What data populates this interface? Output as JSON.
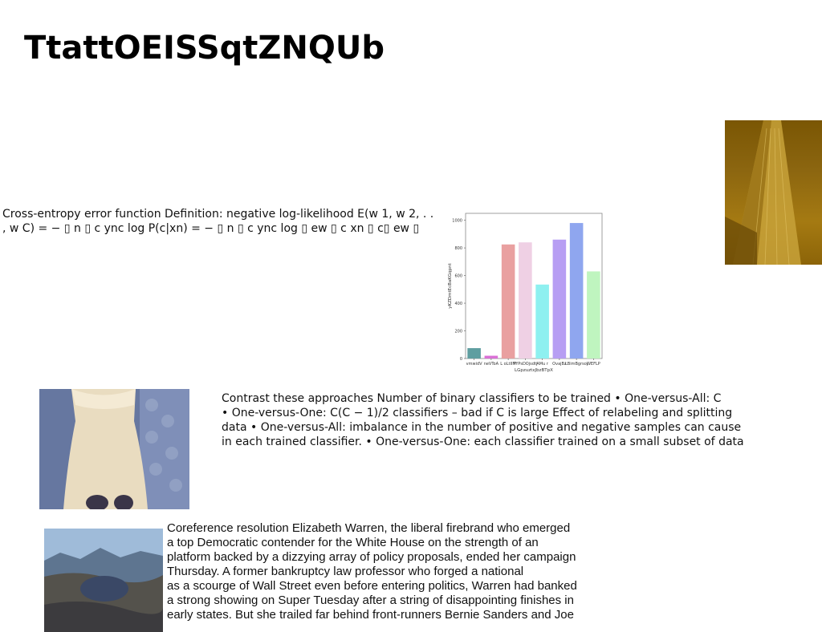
{
  "title": "TtattOEISSqtZNQUb",
  "blocks": {
    "crossentropy": "Cross-entropy error function Definition: negative log-likelihood E(w 1, w 2, . .\n, w C) = − ▯ n ▯ c ync log P(c|xn) = − ▯ n ▯ c ync log ▯ ew ▯ c xn ▯ c▯ ew ▯",
    "contrast": "Contrast these approaches Number of binary classifiers to be trained • One-versus-All: C\n• One-versus-One: C(C − 1)/2 classifiers – bad if C is large Effect of relabeling and splitting\ndata • One-versus-All: imbalance in the number of positive and negative samples can cause\nin each trained classifier. • One-versus-One: each classifier trained on a small subset of data",
    "coref": "Coreference resolution Elizabeth Warren, the liberal firebrand who emerged\na top Democratic contender for the White House on the strength of an\nplatform backed by a dizzying array of policy proposals, ended her campaign\nThursday. A former bankruptcy law professor who forged a national\nas a scourge of Wall Street even before entering politics, Warren had banked\na strong showing on Super Tuesday after a string of disappointing finishes in\nearly states. But she trailed far behind front-runners Bernie Sanders and Joe"
  },
  "images": {
    "building": "building-photo",
    "dress": "dress-photo",
    "landscape": "landscape-photo"
  },
  "chart_data": {
    "type": "bar",
    "categories": [
      "vmwidV",
      "neVToA",
      "L oLtIlFf",
      "PYPsDOjsdtj",
      "AMu r",
      "OvajBz",
      "LBimBgrsoj",
      "WEFLP"
    ],
    "values": [
      75,
      20,
      825,
      840,
      535,
      860,
      980,
      630
    ],
    "colors": [
      "#5f9ea0",
      "#da70d6",
      "#e9a0a0",
      "#efd0e4",
      "#8ef0f0",
      "#b79ef3",
      "#8fa6ef",
      "#bff5bf"
    ],
    "xlabel": "LGpzuztxJbzBTpX",
    "ylabel": "yKZDmtEcBaKGqpnt",
    "ylim": [
      0,
      1050
    ],
    "yticks": [
      0,
      200,
      400,
      600,
      800,
      1000
    ]
  }
}
